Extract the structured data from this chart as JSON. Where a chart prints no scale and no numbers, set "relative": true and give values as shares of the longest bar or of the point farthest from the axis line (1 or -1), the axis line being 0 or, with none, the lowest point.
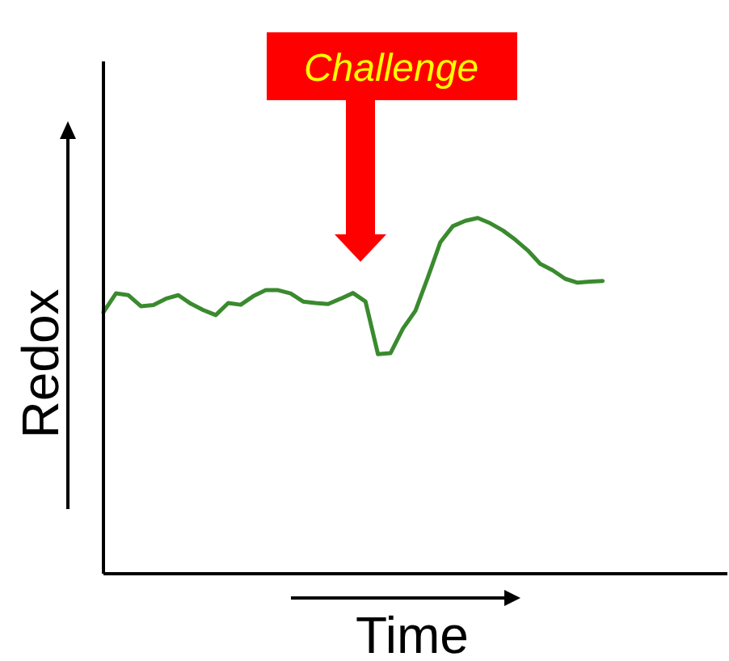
{
  "chart_data": {
    "type": "line",
    "relative": true,
    "xlabel": "Time",
    "ylabel": "Redox",
    "annotations": [
      "Challenge"
    ],
    "categories": [
      null,
      null,
      null,
      null,
      null,
      null,
      null,
      null,
      null,
      null,
      null,
      null,
      null,
      null,
      null,
      null,
      null,
      null,
      null,
      null,
      null,
      null,
      null,
      null,
      null,
      null,
      null,
      null,
      null,
      null,
      null,
      null,
      null,
      null,
      null,
      null,
      null,
      null,
      null,
      null,
      null,
      null,
      null,
      null,
      null,
      null,
      null,
      null,
      null,
      null,
      null
    ],
    "series": [
      {
        "color": "#3a8a2e",
        "values": [
          0.735,
          0.788,
          0.783,
          0.752,
          0.755,
          0.773,
          0.783,
          0.759,
          0.741,
          0.727,
          0.761,
          0.756,
          0.78,
          0.797,
          0.797,
          0.788,
          0.765,
          0.761,
          0.758,
          0.773,
          0.789,
          0.765,
          0.617,
          0.62,
          0.689,
          0.739,
          0.833,
          0.932,
          0.977,
          0.992,
          1,
          0.985,
          0.965,
          0.939,
          0.909,
          0.871,
          0.853,
          0.829,
          0.818,
          0.821,
          0.823,
          null,
          null,
          null,
          null,
          null,
          null,
          null,
          null,
          null,
          null
        ]
      }
    ],
    "grid": false,
    "legend": false,
    "marker": "none",
    "line_style": "solid"
  }
}
